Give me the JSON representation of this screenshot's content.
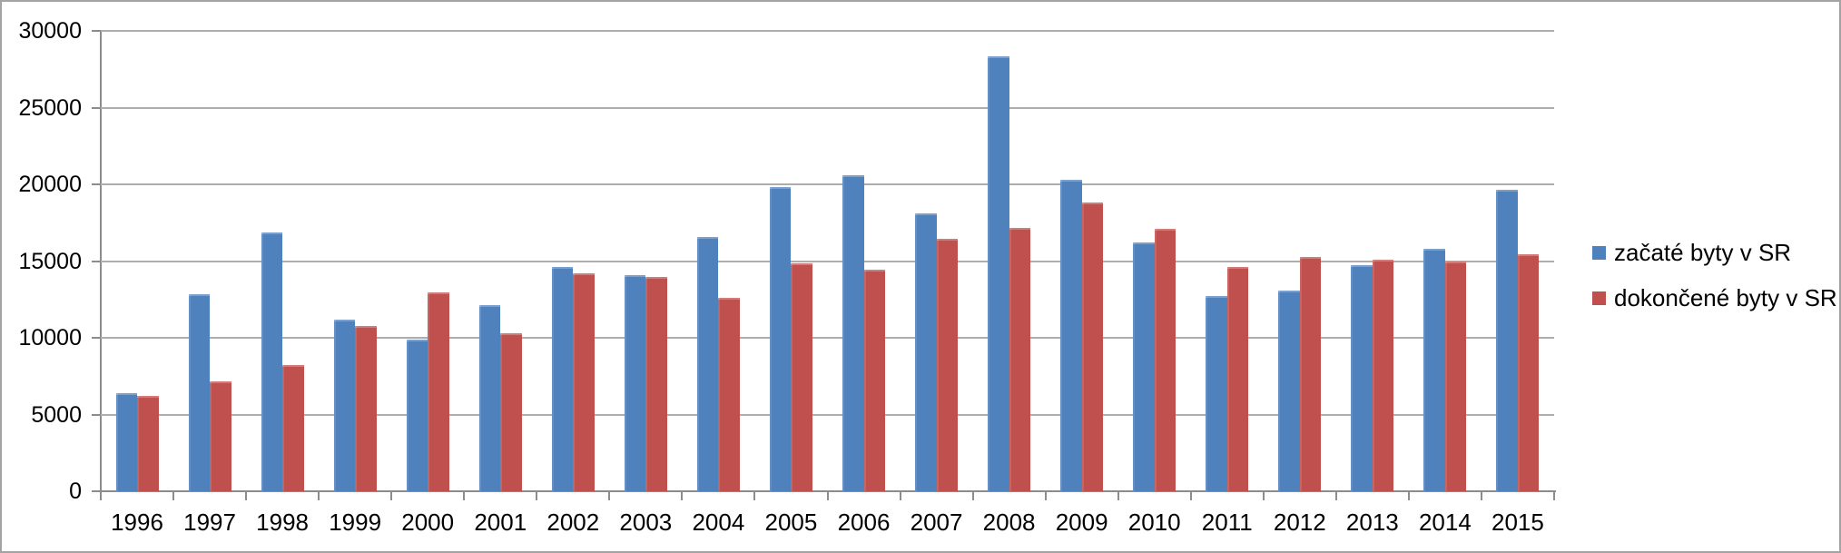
{
  "chart_data": {
    "type": "bar",
    "title": "",
    "xlabel": "",
    "ylabel": "",
    "categories": [
      "1996",
      "1997",
      "1998",
      "1999",
      "2000",
      "2001",
      "2002",
      "2003",
      "2004",
      "2005",
      "2006",
      "2007",
      "2008",
      "2009",
      "2010",
      "2011",
      "2012",
      "2013",
      "2014",
      "2015"
    ],
    "series": [
      {
        "name": "začaté byty v SR",
        "color": "#4F81BD",
        "values": [
          6400,
          12844,
          16857,
          11168,
          9884,
          12128,
          14607,
          14065,
          16586,
          19796,
          20592,
          18116,
          28321,
          20325,
          16211,
          12740,
          13090,
          14740,
          15796,
          19658
        ]
      },
      {
        "name": "dokončené byty v SR",
        "color": "#C0504D",
        "values": [
          6200,
          7172,
          8234,
          10745,
          12931,
          10321,
          14213,
          13980,
          12592,
          14863,
          14444,
          16473,
          17184,
          18834,
          17076,
          14608,
          15255,
          15100,
          14985,
          15471
        ]
      }
    ],
    "ylim": [
      0,
      30000
    ],
    "yticks": [
      0,
      5000,
      10000,
      15000,
      20000,
      25000,
      30000
    ],
    "ytick_labels": [
      "0",
      "5000",
      "10000",
      "15000",
      "20000",
      "25000",
      "30000"
    ],
    "grid": true,
    "legend_position": "right"
  },
  "colors": {
    "series1": "#4F81BD",
    "series2": "#C0504D",
    "gridline": "#ADADAD",
    "axis": "#8C8C8C",
    "text": "#000000",
    "frame_border": "#A3A3A3",
    "background": "#FFFFFF"
  }
}
